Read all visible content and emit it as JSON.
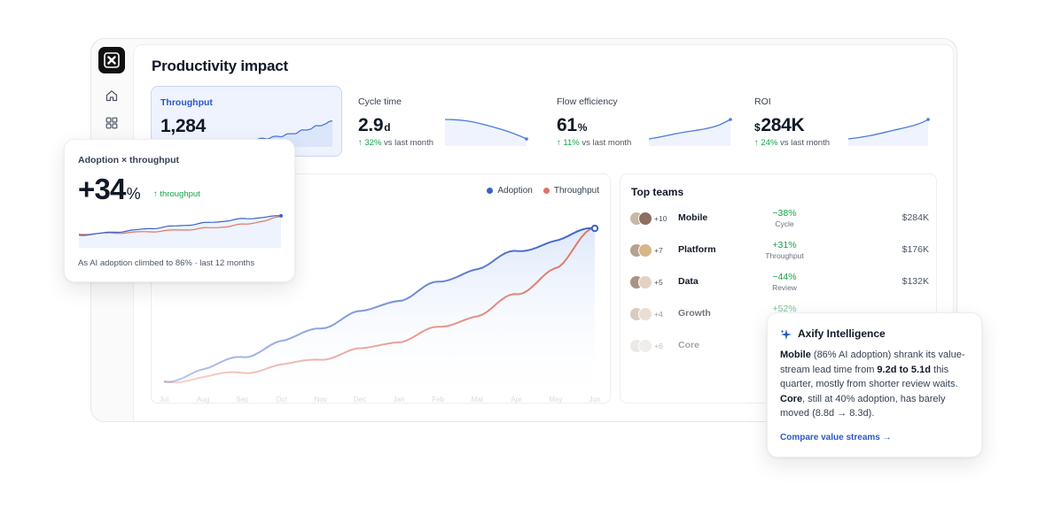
{
  "page": {
    "title": "Productivity impact"
  },
  "metrics": [
    {
      "label": "Throughput",
      "value": "1,284",
      "prefix": "",
      "unit": "",
      "change": "",
      "change_text": "",
      "active": true
    },
    {
      "label": "Cycle time",
      "value": "2.9",
      "prefix": "",
      "unit": "d",
      "change": "↑ 32%",
      "change_text": "vs last month",
      "active": false
    },
    {
      "label": "Flow efficiency",
      "value": "61",
      "prefix": "",
      "unit": "%",
      "change": "↑ 11%",
      "change_text": "vs last month",
      "active": false
    },
    {
      "label": "ROI",
      "value": "284K",
      "prefix": "$",
      "unit": "",
      "change": "↑ 24%",
      "change_text": "vs last month",
      "active": false
    }
  ],
  "chart": {
    "legend": [
      "Adoption",
      "Throughput"
    ],
    "colors": {
      "adoption": "#3b62c9",
      "throughput": "#e07563"
    },
    "x_ticks": [
      "Jul",
      "Aug",
      "Sep",
      "Oct",
      "Nov",
      "Dec",
      "Jan",
      "Feb",
      "Mar",
      "Apr",
      "May",
      "Jun"
    ]
  },
  "chart_data": {
    "type": "line",
    "title": "",
    "xlabel": "",
    "ylabel": "",
    "x": [
      "Jul",
      "Aug",
      "Sep",
      "Oct",
      "Nov",
      "Dec",
      "Jan",
      "Feb",
      "Mar",
      "Apr",
      "May",
      "Jun"
    ],
    "series": [
      {
        "name": "Adoption",
        "values": [
          8,
          14,
          21,
          28,
          36,
          43,
          50,
          58,
          66,
          74,
          80,
          86
        ]
      },
      {
        "name": "Throughput",
        "values": [
          8,
          10,
          13,
          16,
          20,
          24,
          29,
          35,
          42,
          52,
          66,
          86
        ]
      }
    ],
    "ylim": [
      0,
      100
    ],
    "grid": false,
    "legend_position": "top-right"
  },
  "overlay": {
    "title": "Adoption × throughput",
    "value": "+34",
    "unit": "%",
    "tag": "↑ throughput",
    "caption": "As AI adoption climbed to 86% · last 12 months"
  },
  "teams": {
    "title": "Top teams",
    "rows": [
      {
        "count": "+10",
        "name": "Mobile",
        "delta": "−38%",
        "metric": "Cycle",
        "value": "$284K"
      },
      {
        "count": "+7",
        "name": "Platform",
        "delta": "+31%",
        "metric": "Throughput",
        "value": "$176K"
      },
      {
        "count": "+5",
        "name": "Data",
        "delta": "−44%",
        "metric": "Review",
        "value": "$132K"
      },
      {
        "count": "+4",
        "name": "Growth",
        "delta": "+52%",
        "metric": "",
        "value": ""
      },
      {
        "count": "+6",
        "name": "Core",
        "delta": "",
        "metric": "",
        "value": ""
      }
    ]
  },
  "ai": {
    "title": "Axify Intelligence",
    "p1_b": "Mobile",
    "p1": " (86% AI adoption) shrank its value-stream lead time from ",
    "p2_b": "9.2d to 5.1d",
    "p2": " this quarter, mostly from shorter review waits. ",
    "p3_b": "Core",
    "p3": ", still at 40% adoption, has barely moved (8.8d → 8.3d).",
    "link": "Compare value streams"
  },
  "icons": {
    "home": "home-icon",
    "grid": "grid-icon",
    "logo": "axify-logo-icon",
    "spark": "sparkle-icon",
    "arrow": "arrow-right-icon"
  }
}
